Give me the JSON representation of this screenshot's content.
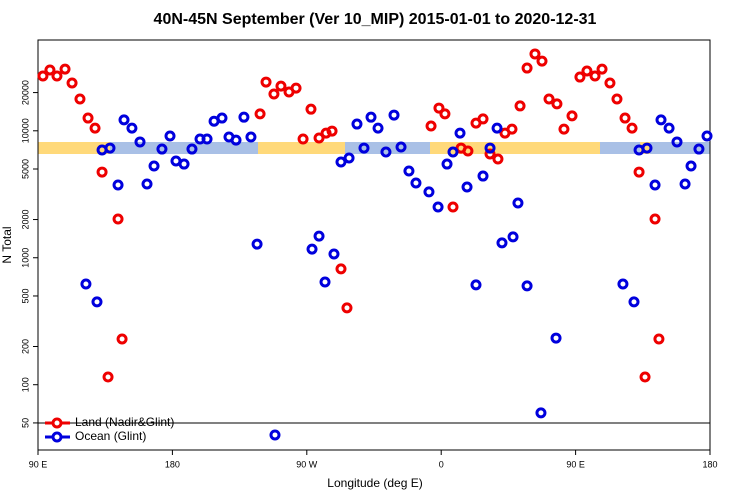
{
  "chart_data": {
    "type": "scatter",
    "title": "40N-45N September (Ver 10_MIP)   2015-01-01 to 2020-12-31",
    "x_label": "Longitude (deg E)",
    "y_label": "N Total",
    "xlim": [
      90,
      540
    ],
    "xticks": [
      {
        "value": 90,
        "label": "90 E"
      },
      180,
      {
        "value": 270,
        "label": "90 W"
      },
      {
        "value": 360,
        "label": "0"
      },
      {
        "value": 450,
        "label": "90 E"
      },
      {
        "value": 540,
        "label": "180"
      }
    ],
    "ylim": [
      30.6,
      51900
    ],
    "yticks": [
      50,
      100,
      200,
      500,
      1000,
      2000,
      5000,
      10000,
      20000
    ],
    "y_scale": "log",
    "legend": "bottom-left",
    "series": [
      {
        "name": "Land (Nadir&Glint)",
        "color": "#ee0000",
        "x": [
          93.3,
          98.0,
          102.7,
          108.1,
          112.8,
          118.1,
          123.5,
          128.2,
          132.9,
          136.9,
          143.6,
          146.3,
          238.7,
          242.7,
          248.0,
          252.7,
          258.1,
          262.8,
          267.5,
          272.8,
          278.2,
          282.9,
          286.9,
          292.9,
          296.9,
          353.2,
          358.5,
          362.5,
          367.9,
          373.3,
          377.9,
          383.3,
          388.0,
          392.7,
          398.0,
          402.7,
          407.4,
          412.8,
          417.5,
          422.8,
          427.5,
          432.2,
          437.5,
          442.2,
          447.6,
          452.9,
          457.6,
          463.0,
          467.7,
          473.0,
          477.7,
          483.1,
          487.8,
          492.5,
          496.5,
          503.2,
          505.8
        ],
        "values": [
          27000,
          30100,
          27000,
          30600,
          23800,
          17800,
          12600,
          10500,
          4730,
          115,
          2020,
          229,
          13600,
          24200,
          19500,
          22500,
          20200,
          21700,
          8610,
          14800,
          8770,
          9590,
          9950,
          817,
          403,
          10900,
          15100,
          13600,
          2510,
          7310,
          6930,
          11500,
          12400,
          6560,
          6000,
          9590,
          10300,
          15700,
          31200,
          40300,
          35400,
          17800,
          16300,
          10300,
          13100,
          26500,
          29600,
          27000,
          30600,
          23800,
          17800,
          12600,
          10500,
          4730,
          115,
          2020,
          229
        ]
      },
      {
        "name": "Ocean (Glint)",
        "color": "#0000dd",
        "x": [
          122.1,
          129.5,
          132.9,
          138.2,
          143.6,
          147.6,
          152.9,
          158.3,
          163.0,
          167.7,
          173.0,
          178.4,
          182.4,
          187.8,
          193.1,
          198.5,
          203.2,
          207.9,
          213.2,
          217.9,
          222.6,
          227.9,
          232.6,
          236.7,
          248.7,
          273.5,
          278.2,
          282.2,
          288.2,
          292.9,
          298.3,
          303.6,
          308.3,
          313.0,
          317.7,
          323.0,
          328.4,
          333.1,
          338.4,
          343.1,
          351.8,
          357.9,
          363.9,
          367.9,
          372.6,
          377.3,
          383.3,
          388.0,
          392.7,
          397.4,
          400.7,
          408.1,
          411.4,
          417.5,
          426.8,
          436.9,
          481.7,
          489.1,
          492.5,
          497.8,
          503.2,
          507.2,
          512.6,
          517.9,
          523.3,
          527.3,
          532.6,
          538.0
        ],
        "values": [
          621,
          449,
          7060,
          7310,
          3740,
          12200,
          10500,
          8170,
          3810,
          5280,
          7180,
          9100,
          5780,
          5470,
          7180,
          8610,
          8610,
          11900,
          12600,
          8940,
          8450,
          12800,
          8940,
          1280,
          40.2,
          1170,
          1480,
          644,
          1070,
          5680,
          6110,
          11300,
          7310,
          12800,
          10500,
          6810,
          13300,
          7450,
          4820,
          3880,
          3300,
          2510,
          5470,
          6810,
          9590,
          3610,
          611,
          4400,
          7310,
          10500,
          1310,
          1460,
          2700,
          600,
          60,
          233,
          621,
          449,
          7060,
          7310,
          3740,
          12200,
          10500,
          8170,
          3810,
          5280,
          7180,
          9100
        ]
      }
    ]
  }
}
